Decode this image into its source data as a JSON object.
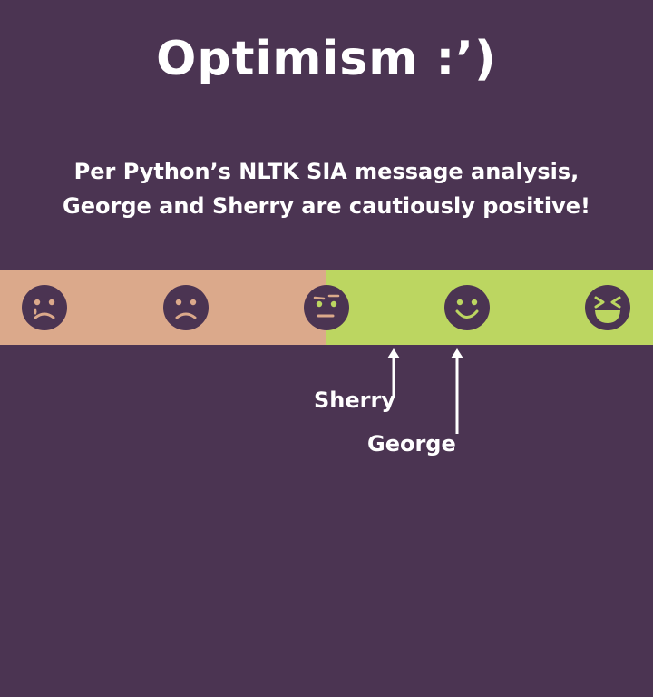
{
  "title": "Optimism :’)",
  "subtitle_lines": [
    "Per Python’s NLTK SIA message analysis,",
    "George and Sherry are cautiously positive!"
  ],
  "scale": {
    "negative_color": "#dba98b",
    "positive_color": "#bcd661",
    "face_color": "#4b3452",
    "faces": [
      "crying-face-icon",
      "frowning-face-icon",
      "skeptical-face-icon",
      "smiling-face-icon",
      "laughing-face-icon"
    ]
  },
  "markers": [
    {
      "name": "Sherry",
      "position": 0.6
    },
    {
      "name": "George",
      "position": 0.7
    }
  ]
}
